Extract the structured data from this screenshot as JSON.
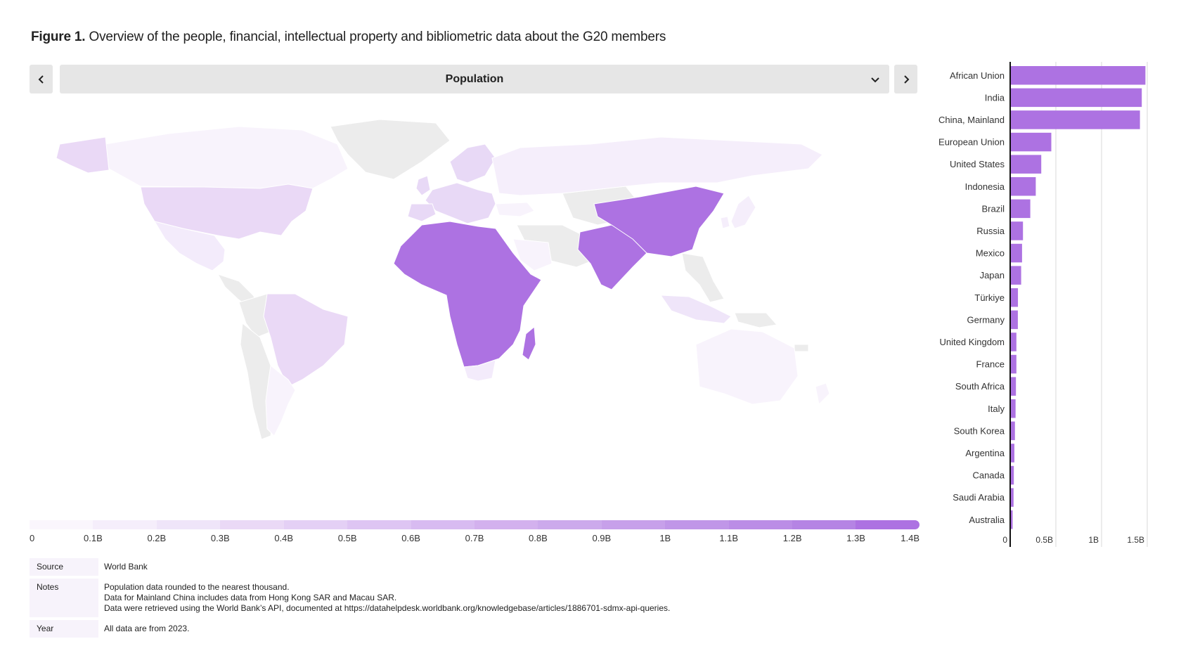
{
  "figure": {
    "label": "Figure 1.",
    "title": "Overview of the people, financial, intellectual property and bibliometric data about the G20 members"
  },
  "selector": {
    "value": "Population"
  },
  "icons": {
    "prev": "chevron-left-icon",
    "next": "chevron-right-icon",
    "dropdown": "chevron-down-icon"
  },
  "colors": {
    "accent": "#ad72e2",
    "no_data": "#ececec",
    "scale": [
      "#faf6fd",
      "#f5eefb",
      "#efe5f9",
      "#ead9f6",
      "#e4d0f5",
      "#dec5f3",
      "#d8bbf1",
      "#d3b1ee",
      "#ccaaec",
      "#c7a0ea",
      "#c096e8",
      "#bb8de6",
      "#b584e4",
      "#ad72e2"
    ]
  },
  "legend": {
    "ticks": [
      "0",
      "0.1B",
      "0.2B",
      "0.3B",
      "0.4B",
      "0.5B",
      "0.6B",
      "0.7B",
      "0.8B",
      "0.9B",
      "1B",
      "1.1B",
      "1.2B",
      "1.3B",
      "1.4B"
    ]
  },
  "chart_data": [
    {
      "type": "choropleth",
      "measure": "Population",
      "scale_range": [
        0,
        1.4
      ],
      "unit": "B"
    },
    {
      "type": "bar",
      "orientation": "horizontal",
      "categories": [
        "African Union",
        "India",
        "China, Mainland",
        "European Union",
        "United States",
        "Indonesia",
        "Brazil",
        "Russia",
        "Mexico",
        "Japan",
        "Türkiye",
        "Germany",
        "United Kingdom",
        "France",
        "South Africa",
        "Italy",
        "South Korea",
        "Argentina",
        "Canada",
        "Saudi Arabia",
        "Australia"
      ],
      "values": [
        1.48,
        1.44,
        1.42,
        0.45,
        0.34,
        0.28,
        0.22,
        0.14,
        0.13,
        0.12,
        0.085,
        0.084,
        0.068,
        0.068,
        0.063,
        0.059,
        0.052,
        0.046,
        0.04,
        0.037,
        0.027
      ],
      "xticks": [
        "0",
        "0.5B",
        "1B",
        "1.5B"
      ],
      "xlim": [
        0,
        1.5
      ]
    }
  ],
  "meta": {
    "source_label": "Source",
    "source": "World Bank",
    "notes_label": "Notes",
    "notes": [
      "Population data rounded to the nearest thousand.",
      "Data for Mainland China includes data from Hong Kong SAR and Macau SAR.",
      "Data were retrieved using the World Bank’s API, documented at https://datahelpdesk.worldbank.org/knowledgebase/articles/1886701-sdmx-api-queries."
    ],
    "year_label": "Year",
    "year": "All data are from 2023."
  }
}
